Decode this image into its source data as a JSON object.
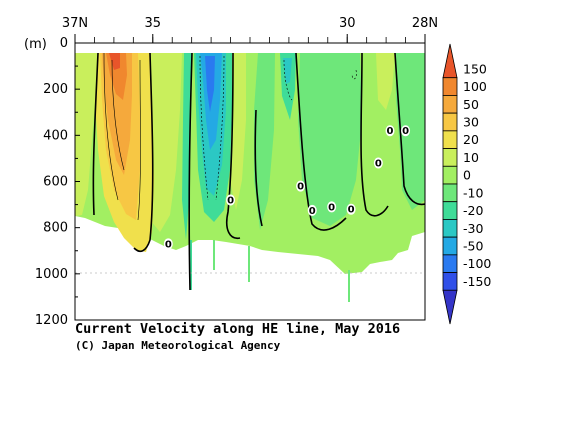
{
  "chart_data": {
    "type": "heatmap",
    "title": "Current Velocity along HE line, May 2016",
    "credit": "(C) Japan Meteorological Agency",
    "y_unit_label": "(m)",
    "x_ticks": [
      "37N",
      "35",
      "30",
      "28N"
    ],
    "x_tick_values": [
      37,
      35,
      30,
      28
    ],
    "x_range": [
      37,
      28
    ],
    "y_ticks": [
      "0",
      "200",
      "400",
      "600",
      "800",
      "1000",
      "1200"
    ],
    "y_tick_values": [
      0,
      200,
      400,
      600,
      800,
      1000,
      1200
    ],
    "y_range": [
      0,
      1200
    ],
    "colorbar": {
      "labels": [
        "150",
        "100",
        "50",
        "30",
        "20",
        "10",
        "0",
        "-10",
        "-20",
        "-30",
        "-50",
        "-100",
        "-150"
      ],
      "colors": [
        "#e8552a",
        "#f0872e",
        "#f5a93c",
        "#f7c744",
        "#f0e04c",
        "#c9ef5c",
        "#a2ef62",
        "#6ee77a",
        "#3fdc98",
        "#2bc8c4",
        "#24a9e4",
        "#2a7af0",
        "#3050e8",
        "#3535c8"
      ]
    },
    "contour_labels": [
      "0",
      "0",
      "0",
      "0",
      "0",
      "0",
      "0",
      "0",
      "0"
    ],
    "grid": false
  }
}
